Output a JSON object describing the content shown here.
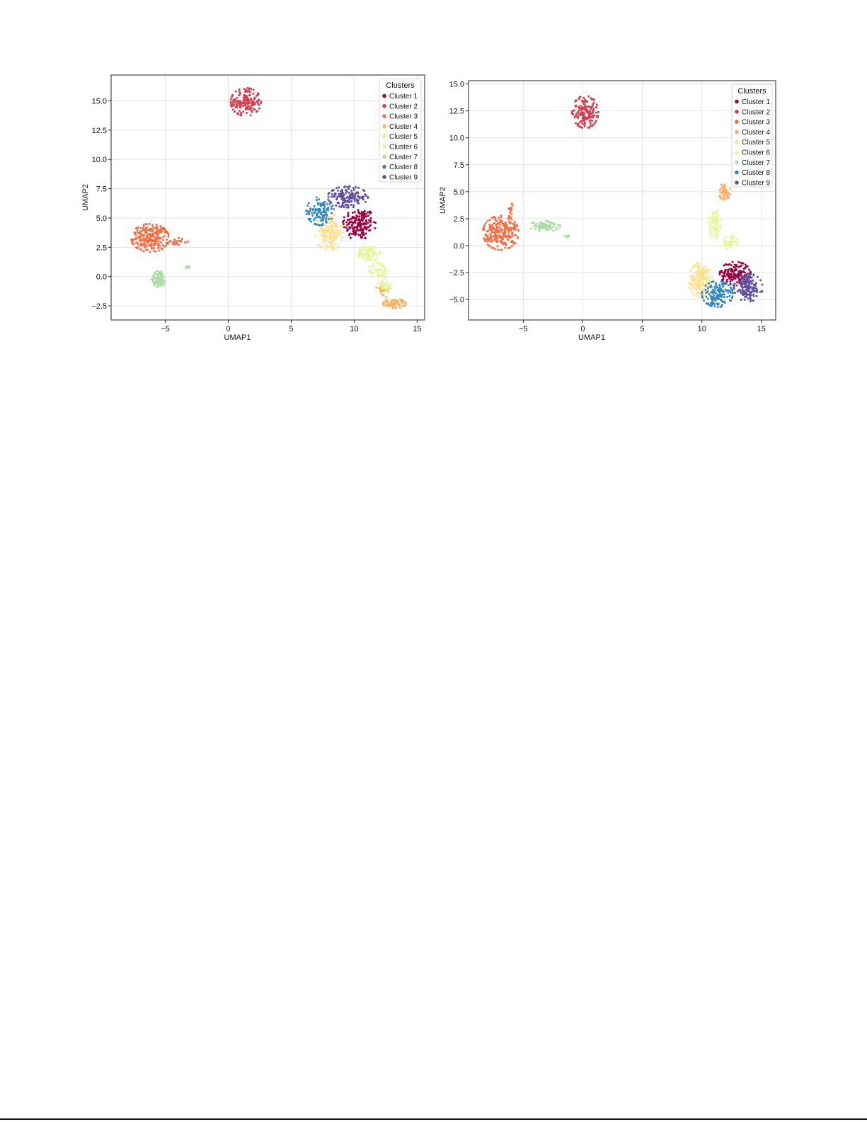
{
  "chart_data": [
    {
      "type": "scatter",
      "xlabel": "UMAP1",
      "ylabel": "UMAP2",
      "xlim": [
        -9.3,
        15.6
      ],
      "ylim": [
        -3.7,
        17.2
      ],
      "xticks": [
        -5,
        0,
        5,
        10,
        15
      ],
      "xtick_labels": [
        "−5",
        "0",
        "5",
        "10",
        "15"
      ],
      "yticks": [
        -2.5,
        0.0,
        2.5,
        5.0,
        7.5,
        10.0,
        12.5,
        15.0
      ],
      "ytick_labels": [
        "−2.5",
        "0.0",
        "2.5",
        "5.0",
        "7.5",
        "10.0",
        "12.5",
        "15.0"
      ],
      "grid": true,
      "legend": {
        "title": "Clusters",
        "placement": "top-right"
      },
      "series": [
        {
          "name": "Cluster 1",
          "color": "#9e0142",
          "clusters": [
            {
              "cx": 10.4,
              "cy": 4.5,
              "rx": 1.3,
              "ry": 1.4,
              "n": 170
            }
          ]
        },
        {
          "name": "Cluster 2",
          "color": "#d53e4f",
          "clusters": [
            {
              "cx": 1.4,
              "cy": 14.9,
              "rx": 1.2,
              "ry": 1.2,
              "n": 170
            }
          ]
        },
        {
          "name": "Cluster 3",
          "color": "#f46d43",
          "clusters": [
            {
              "cx": -6.2,
              "cy": 3.3,
              "rx": 1.5,
              "ry": 1.2,
              "n": 240
            },
            {
              "cx": -4.0,
              "cy": 3.0,
              "rx": 0.8,
              "ry": 0.3,
              "n": 25
            }
          ]
        },
        {
          "name": "Cluster 4",
          "color": "#fdae61",
          "clusters": [
            {
              "cx": 13.2,
              "cy": -2.3,
              "rx": 0.9,
              "ry": 0.4,
              "n": 70
            },
            {
              "cx": 12.3,
              "cy": -1.2,
              "rx": 0.6,
              "ry": 0.6,
              "n": 25
            }
          ]
        },
        {
          "name": "Cluster 5",
          "color": "#fee08b",
          "clusters": [
            {
              "cx": 8.0,
              "cy": 3.8,
              "rx": 1.1,
              "ry": 1.6,
              "n": 170
            }
          ]
        },
        {
          "name": "Cluster 6",
          "color": "#e6f598",
          "clusters": [
            {
              "cx": 11.2,
              "cy": 2.0,
              "rx": 0.9,
              "ry": 0.7,
              "n": 70
            },
            {
              "cx": 12.0,
              "cy": 0.5,
              "rx": 0.8,
              "ry": 0.8,
              "n": 60
            },
            {
              "cx": 12.5,
              "cy": -0.8,
              "rx": 0.6,
              "ry": 0.5,
              "n": 30
            }
          ]
        },
        {
          "name": "Cluster 7",
          "color": "#abdda4",
          "clusters": [
            {
              "cx": -5.5,
              "cy": -0.2,
              "rx": 0.6,
              "ry": 0.7,
              "n": 90
            },
            {
              "cx": -3.2,
              "cy": 0.8,
              "rx": 0.15,
              "ry": 0.12,
              "n": 8
            }
          ]
        },
        {
          "name": "Cluster 8",
          "color": "#3288bd",
          "clusters": [
            {
              "cx": 7.3,
              "cy": 5.6,
              "rx": 1.1,
              "ry": 1.2,
              "n": 120
            }
          ]
        },
        {
          "name": "Cluster 9",
          "color": "#5e4fa2",
          "clusters": [
            {
              "cx": 9.5,
              "cy": 6.8,
              "rx": 1.6,
              "ry": 0.9,
              "n": 160
            }
          ]
        }
      ]
    },
    {
      "type": "scatter",
      "xlabel": "UMAP1",
      "ylabel": "UMAP2",
      "xlim": [
        -9.6,
        16.2
      ],
      "ylim": [
        -6.9,
        15.3
      ],
      "xticks": [
        -5,
        0,
        5,
        10,
        15
      ],
      "xtick_labels": [
        "−5",
        "0",
        "5",
        "10",
        "15"
      ],
      "yticks": [
        -5.0,
        -2.5,
        0.0,
        2.5,
        5.0,
        7.5,
        10.0,
        12.5,
        15.0
      ],
      "ytick_labels": [
        "−5.0",
        "−2.5",
        "0.0",
        "2.5",
        "5.0",
        "7.5",
        "10.0",
        "12.5",
        "15.0"
      ],
      "grid": true,
      "legend": {
        "title": "Clusters",
        "placement": "top-right"
      },
      "series": [
        {
          "name": "Cluster 1",
          "color": "#9e0142",
          "clusters": [
            {
              "cx": 12.8,
              "cy": -2.6,
              "rx": 1.3,
              "ry": 1.1,
              "n": 170
            }
          ]
        },
        {
          "name": "Cluster 2",
          "color": "#d53e4f",
          "clusters": [
            {
              "cx": 0.2,
              "cy": 12.4,
              "rx": 1.1,
              "ry": 1.5,
              "n": 170
            }
          ]
        },
        {
          "name": "Cluster 3",
          "color": "#f46d43",
          "clusters": [
            {
              "cx": -6.9,
              "cy": 1.2,
              "rx": 1.5,
              "ry": 1.6,
              "n": 250
            },
            {
              "cx": -6.0,
              "cy": 3.3,
              "rx": 0.25,
              "ry": 0.8,
              "n": 15
            }
          ]
        },
        {
          "name": "Cluster 4",
          "color": "#fdae61",
          "clusters": [
            {
              "cx": 11.9,
              "cy": 5.0,
              "rx": 0.5,
              "ry": 0.8,
              "n": 50
            }
          ]
        },
        {
          "name": "Cluster 5",
          "color": "#fee08b",
          "clusters": [
            {
              "cx": 9.9,
              "cy": -3.2,
              "rx": 1.0,
              "ry": 1.6,
              "n": 170
            }
          ]
        },
        {
          "name": "Cluster 6",
          "color": "#e6f598",
          "clusters": [
            {
              "cx": 11.1,
              "cy": 2.0,
              "rx": 0.5,
              "ry": 1.4,
              "n": 80
            },
            {
              "cx": 12.3,
              "cy": 0.3,
              "rx": 0.7,
              "ry": 0.6,
              "n": 40
            }
          ]
        },
        {
          "name": "Cluster 7",
          "color": "#abdda4",
          "clusters": [
            {
              "cx": -3.2,
              "cy": 1.8,
              "rx": 1.3,
              "ry": 0.5,
              "n": 90
            },
            {
              "cx": -1.3,
              "cy": 0.9,
              "rx": 0.3,
              "ry": 0.15,
              "n": 8
            }
          ]
        },
        {
          "name": "Cluster 8",
          "color": "#3288bd",
          "clusters": [
            {
              "cx": 11.3,
              "cy": -4.5,
              "rx": 1.3,
              "ry": 1.2,
              "n": 160
            }
          ]
        },
        {
          "name": "Cluster 9",
          "color": "#5e4fa2",
          "clusters": [
            {
              "cx": 13.9,
              "cy": -3.9,
              "rx": 1.2,
              "ry": 1.3,
              "n": 150
            }
          ]
        }
      ]
    }
  ]
}
